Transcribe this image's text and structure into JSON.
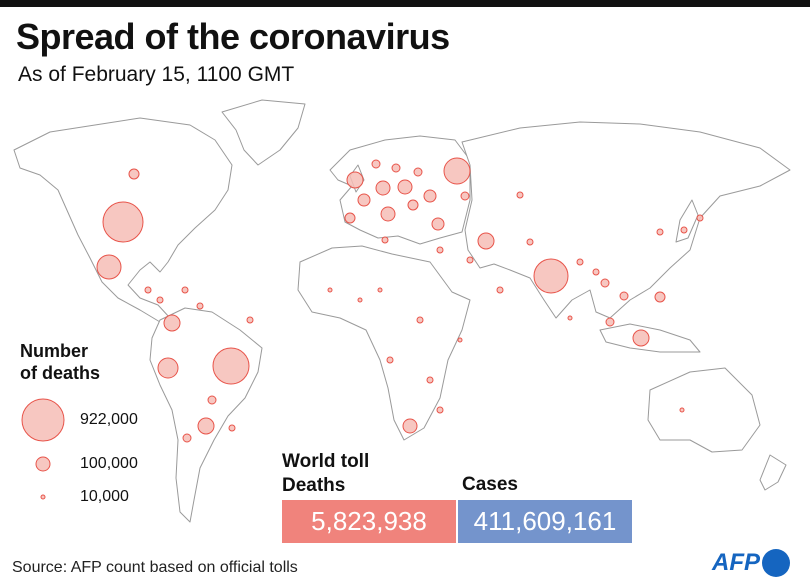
{
  "header": {
    "title": "Spread of the coronavirus",
    "subtitle": "As of February 15, 1100 GMT"
  },
  "legend": {
    "title_line1": "Number",
    "title_line2": "of deaths",
    "items": [
      {
        "label": "922,000",
        "value": 922000
      },
      {
        "label": "100,000",
        "value": 100000
      },
      {
        "label": "10,000",
        "value": 10000
      }
    ]
  },
  "world_toll": {
    "title": "World toll",
    "deaths_label": "Deaths",
    "deaths_value": "5,823,938",
    "cases_label": "Cases",
    "cases_value": "411,609,161"
  },
  "colors": {
    "bubble_fill": "#f6bdb6",
    "bubble_stroke": "#e8544a",
    "deaths": "#f0837c",
    "cases": "#7494cc",
    "land_stroke": "#9a9a9a",
    "logo": "#1565c0"
  },
  "footer": {
    "source": "Source: AFP count based on official tolls",
    "logo": "AFP"
  }
}
